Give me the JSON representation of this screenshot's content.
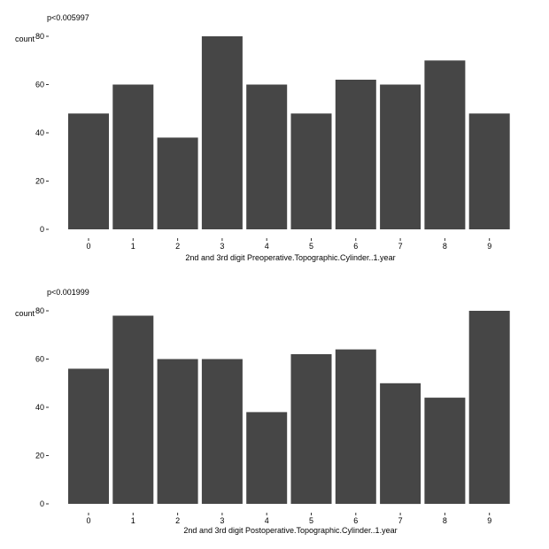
{
  "chart_data": [
    {
      "type": "bar",
      "annotation": "p<0.005997",
      "ylabel": "count",
      "xlabel": "2nd and 3rd digit Preoperative.Topographic.Cylinder..1.year",
      "categories": [
        "0",
        "1",
        "2",
        "3",
        "4",
        "5",
        "6",
        "7",
        "8",
        "9"
      ],
      "values": [
        48,
        60,
        38,
        80,
        60,
        48,
        62,
        60,
        70,
        48
      ],
      "yticks": [
        0,
        20,
        40,
        60,
        80
      ],
      "ylim": [
        0,
        80
      ],
      "grid": false,
      "bar_color": "#464646"
    },
    {
      "type": "bar",
      "annotation": "p<0.001999",
      "ylabel": "count",
      "xlabel": "2nd and 3rd digit Postoperative.Topographic.Cylinder..1.year",
      "categories": [
        "0",
        "1",
        "2",
        "3",
        "4",
        "5",
        "6",
        "7",
        "8",
        "9"
      ],
      "values": [
        56,
        78,
        60,
        60,
        38,
        62,
        64,
        50,
        44,
        80
      ],
      "yticks": [
        0,
        20,
        40,
        60,
        80
      ],
      "ylim": [
        0,
        80
      ],
      "grid": false,
      "bar_color": "#464646"
    }
  ]
}
